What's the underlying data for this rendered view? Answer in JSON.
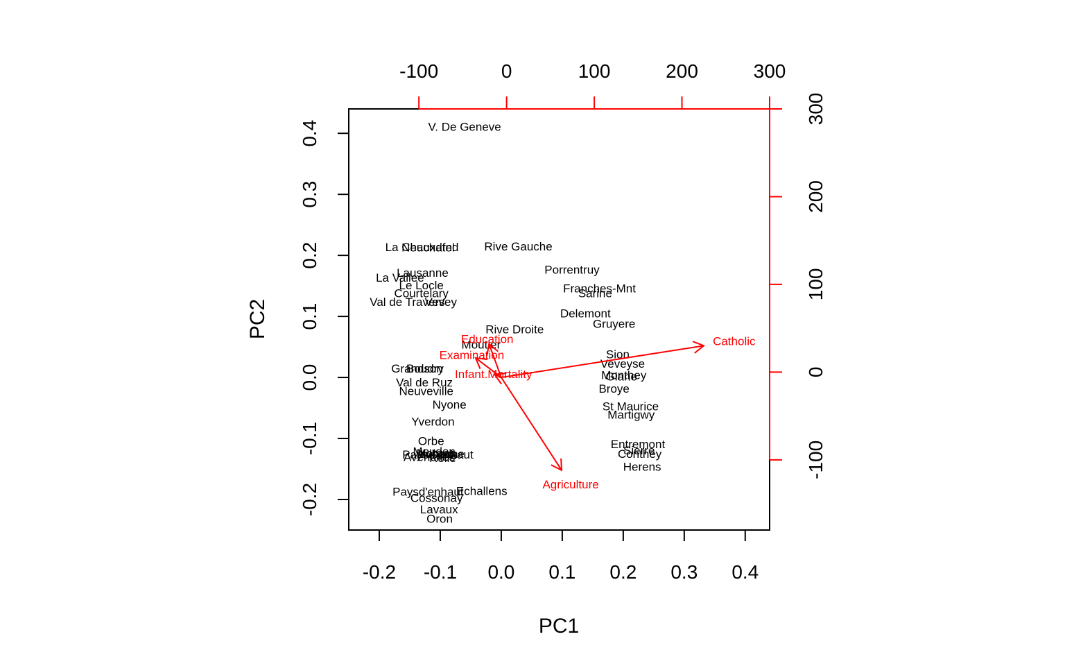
{
  "chart_data": {
    "type": "scatter",
    "subtype": "biplot",
    "xlabel": "PC1",
    "ylabel": "PC2",
    "xlim": [
      -0.25,
      0.44
    ],
    "ylim": [
      -0.25,
      0.44
    ],
    "xticks": [
      -0.2,
      -0.1,
      0.0,
      0.1,
      0.2,
      0.3,
      0.4
    ],
    "yticks": [
      -0.2,
      -0.1,
      0.0,
      0.1,
      0.2,
      0.3,
      0.4
    ],
    "x_tick_labels": [
      "-0.2",
      "-0.1",
      "0.0",
      "0.1",
      "0.2",
      "0.3",
      "0.4"
    ],
    "y_tick_labels": [
      "-0.2",
      "-0.1",
      "0.0",
      "0.1",
      "0.2",
      "0.3",
      "0.4"
    ],
    "secondary_lim": [
      -180,
      300
    ],
    "secondary_ticks": [
      -100,
      0,
      100,
      200,
      300
    ],
    "top_tick_labels": [
      "-100",
      "0",
      "100",
      "200",
      "300"
    ],
    "right_tick_labels": [
      "-100",
      "0",
      "100",
      "200",
      "300"
    ],
    "secondary_axis_color": "#ff0000",
    "observation_color": "#000000",
    "variable_color": "#ff0000",
    "observations": [
      {
        "label": "V. De Geneve",
        "x": -0.06,
        "y": 0.411
      },
      {
        "label": "La Chauxdfnd",
        "x": -0.13,
        "y": 0.214
      },
      {
        "label": "Neuchatel",
        "x": -0.12,
        "y": 0.213
      },
      {
        "label": "Rive Gauche",
        "x": 0.028,
        "y": 0.215
      },
      {
        "label": "Lausanne",
        "x": -0.129,
        "y": 0.172
      },
      {
        "label": "La Vallee",
        "x": -0.166,
        "y": 0.164
      },
      {
        "label": "Le Locle",
        "x": -0.131,
        "y": 0.151
      },
      {
        "label": "Courtelary",
        "x": -0.131,
        "y": 0.138
      },
      {
        "label": "Val de Travers",
        "x": -0.154,
        "y": 0.124
      },
      {
        "label": "Vevey",
        "x": -0.099,
        "y": 0.124
      },
      {
        "label": "Porrentruy",
        "x": 0.116,
        "y": 0.177
      },
      {
        "label": "Franches-Mnt",
        "x": 0.161,
        "y": 0.146
      },
      {
        "label": "Sarine",
        "x": 0.154,
        "y": 0.138
      },
      {
        "label": "Delemont",
        "x": 0.138,
        "y": 0.105
      },
      {
        "label": "Gruyere",
        "x": 0.185,
        "y": 0.088
      },
      {
        "label": "Rive Droite",
        "x": 0.022,
        "y": 0.079
      },
      {
        "label": "Moutier",
        "x": -0.033,
        "y": 0.054
      },
      {
        "label": "Sion",
        "x": 0.191,
        "y": 0.038
      },
      {
        "label": "Veveyse",
        "x": 0.199,
        "y": 0.023
      },
      {
        "label": "Monthey",
        "x": 0.201,
        "y": 0.004
      },
      {
        "label": "Glane",
        "x": 0.197,
        "y": 0.002
      },
      {
        "label": "Broye",
        "x": 0.185,
        "y": -0.018
      },
      {
        "label": "Grandson",
        "x": -0.138,
        "y": 0.015
      },
      {
        "label": "Boudry",
        "x": -0.125,
        "y": 0.015
      },
      {
        "label": "Val de Ruz",
        "x": -0.126,
        "y": -0.008
      },
      {
        "label": "Neuveville",
        "x": -0.123,
        "y": -0.022
      },
      {
        "label": "Nyone",
        "x": -0.085,
        "y": -0.044
      },
      {
        "label": "Yverdon",
        "x": -0.112,
        "y": -0.072
      },
      {
        "label": "St Maurice",
        "x": 0.212,
        "y": -0.047
      },
      {
        "label": "Martigwy",
        "x": 0.213,
        "y": -0.061
      },
      {
        "label": "Orbe",
        "x": -0.115,
        "y": -0.104
      },
      {
        "label": "Moudon",
        "x": -0.11,
        "y": -0.121
      },
      {
        "label": "Morges",
        "x": -0.107,
        "y": -0.124
      },
      {
        "label": "Aubonne",
        "x": -0.099,
        "y": -0.125
      },
      {
        "label": "Avenches",
        "x": -0.118,
        "y": -0.13
      },
      {
        "label": "Rolle",
        "x": -0.096,
        "y": -0.132
      },
      {
        "label": "Paysd'enhaut",
        "x": -0.104,
        "y": -0.126
      },
      {
        "label": "Entremont",
        "x": 0.224,
        "y": -0.109
      },
      {
        "label": "Sierre",
        "x": 0.226,
        "y": -0.119
      },
      {
        "label": "Conthey",
        "x": 0.227,
        "y": -0.125
      },
      {
        "label": "Herens",
        "x": 0.231,
        "y": -0.146
      },
      {
        "label": "Paysd'enhaut",
        "x": -0.12,
        "y": -0.187
      },
      {
        "label": "Echallens",
        "x": -0.032,
        "y": -0.186
      },
      {
        "label": "Cossonay",
        "x": -0.106,
        "y": -0.197
      },
      {
        "label": "Lavaux",
        "x": -0.102,
        "y": -0.216
      },
      {
        "label": "Oron",
        "x": -0.101,
        "y": -0.231
      }
    ],
    "variables": [
      {
        "label": "Catholic",
        "x": 0.332,
        "y": 0.052
      },
      {
        "label": "Agriculture",
        "x": 0.099,
        "y": -0.152
      },
      {
        "label": "Education",
        "x": -0.02,
        "y": 0.055
      },
      {
        "label": "Examination",
        "x": -0.042,
        "y": 0.032
      },
      {
        "label": "Infant.Mortality",
        "x": -0.011,
        "y": 0.005
      }
    ]
  }
}
